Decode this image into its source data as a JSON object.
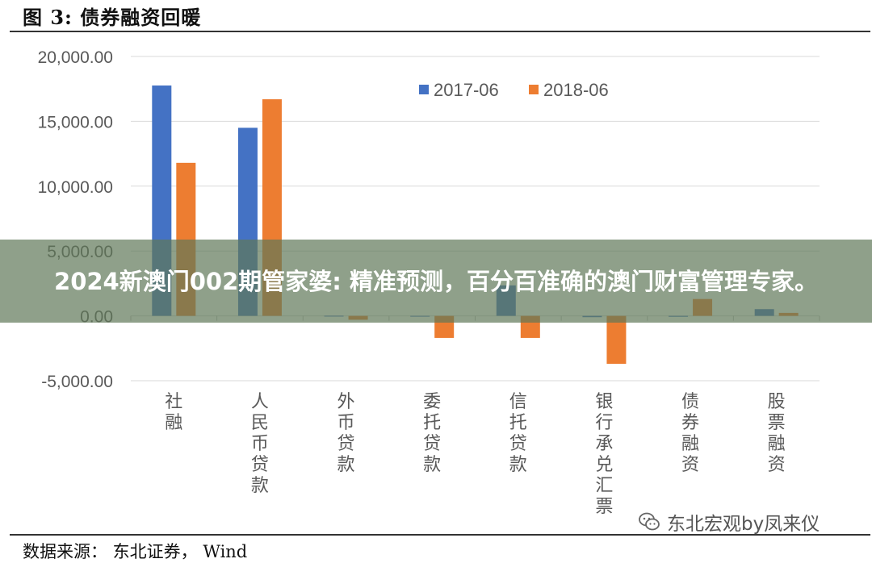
{
  "figure_title": "图 3: 债券融资回暖",
  "source_text": "数据来源： 东北证券， Wind",
  "overlay_text": "2024新澳门002期管家婆: 精准预测，百分百准确的澳门财富管理专家。",
  "watermark_text": "东北宏观by凤来仪",
  "colors": {
    "series_2017": "#4472c4",
    "series_2018": "#ed7d31",
    "grid": "#d9d9d9",
    "tick_text": "#595959"
  },
  "chart_data": {
    "type": "bar",
    "categories": [
      "社融",
      "人民币贷款",
      "外币贷款",
      "委托贷款",
      "信托贷款",
      "银行承兑汇票",
      "债券融资",
      "股票融资"
    ],
    "series": [
      {
        "name": "2017-06",
        "values": [
          17760,
          14500,
          10,
          -50,
          2350,
          -100,
          -70,
          520
        ]
      },
      {
        "name": "2018-06",
        "values": [
          11800,
          16700,
          -300,
          -1700,
          -1700,
          -3700,
          1300,
          230
        ]
      }
    ],
    "ylim": [
      -5000,
      20000
    ],
    "yticks": [
      -5000,
      0,
      5000,
      10000,
      15000,
      20000
    ],
    "ytick_labels": [
      "-5,000.00",
      "0.00",
      "5,000.00",
      "10,000.00",
      "15,000.00",
      "20,000.00"
    ],
    "legend_position": "top-right",
    "grid": true
  }
}
